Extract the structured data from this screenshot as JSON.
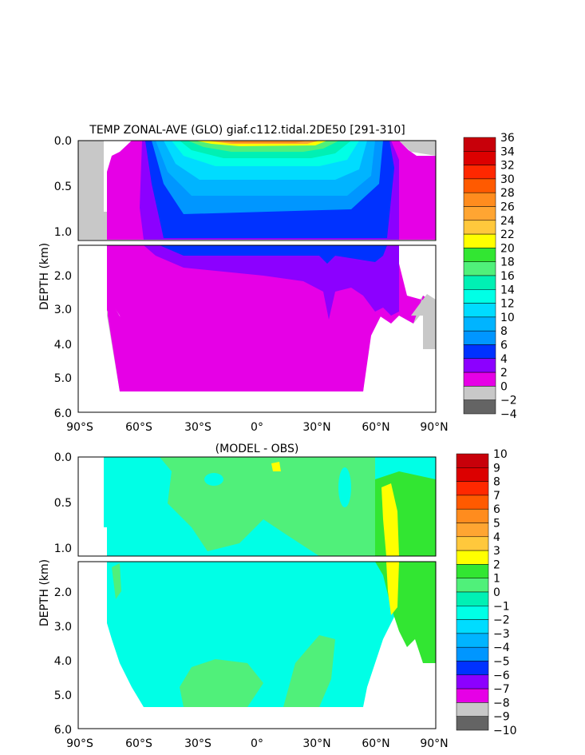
{
  "chart_data": [
    {
      "type": "heatmap",
      "title": "TEMP ZONAL-AVE (GLO) giaf.c112.tidal.2DE50 [291-310]",
      "ylabel": "DEPTH (km)",
      "xlabel": "",
      "x_ticks": [
        "90°S",
        "60°S",
        "30°S",
        "0°",
        "30°N",
        "60°N",
        "90°N"
      ],
      "y_ticks_upper": [
        "0.0",
        "0.5",
        "1.0"
      ],
      "y_ticks_lower": [
        "2.0",
        "3.0",
        "4.0",
        "5.0",
        "6.0"
      ],
      "xlim": [
        -90,
        90
      ],
      "ylim": [
        6.0,
        0.0
      ],
      "colorbar": {
        "labels": [
          "36",
          "34",
          "32",
          "30",
          "28",
          "26",
          "24",
          "22",
          "20",
          "18",
          "16",
          "14",
          "12",
          "10",
          "8",
          "6",
          "4",
          "2",
          "0",
          "−2",
          "−4"
        ],
        "colors": [
          "#c8000a",
          "#dc0000",
          "#ff2800",
          "#ff5a00",
          "#ff8c1e",
          "#ffa532",
          "#ffc83c",
          "#ffff00",
          "#32e632",
          "#50f07a",
          "#00f0b4",
          "#00ffe6",
          "#00dcff",
          "#00b4ff",
          "#0096ff",
          "#0032ff",
          "#8c00ff",
          "#e600e6",
          "#c8c8c8",
          "#646464"
        ]
      }
    },
    {
      "type": "heatmap",
      "title": "(MODEL - OBS)",
      "ylabel": "DEPTH (km)",
      "xlabel": "",
      "x_ticks": [
        "90°S",
        "60°S",
        "30°S",
        "0°",
        "30°N",
        "60°N",
        "90°N"
      ],
      "y_ticks_upper": [
        "0.0",
        "0.5",
        "1.0"
      ],
      "y_ticks_lower": [
        "2.0",
        "3.0",
        "4.0",
        "5.0",
        "6.0"
      ],
      "xlim": [
        -90,
        90
      ],
      "ylim": [
        6.0,
        0.0
      ],
      "colorbar": {
        "labels": [
          "10",
          "9",
          "8",
          "7",
          "6",
          "5",
          "4",
          "3",
          "2",
          "1",
          "0",
          "−1",
          "−2",
          "−3",
          "−4",
          "−5",
          "−6",
          "−7",
          "−8",
          "−9",
          "−10"
        ],
        "colors": [
          "#c8000a",
          "#dc0000",
          "#ff2800",
          "#ff5a00",
          "#ff8c1e",
          "#ffa532",
          "#ffc83c",
          "#ffff00",
          "#32e632",
          "#50f07a",
          "#00f0b4",
          "#00ffe6",
          "#00dcff",
          "#00b4ff",
          "#0096ff",
          "#0032ff",
          "#8c00ff",
          "#e600e6",
          "#c8c8c8",
          "#646464"
        ]
      }
    }
  ]
}
